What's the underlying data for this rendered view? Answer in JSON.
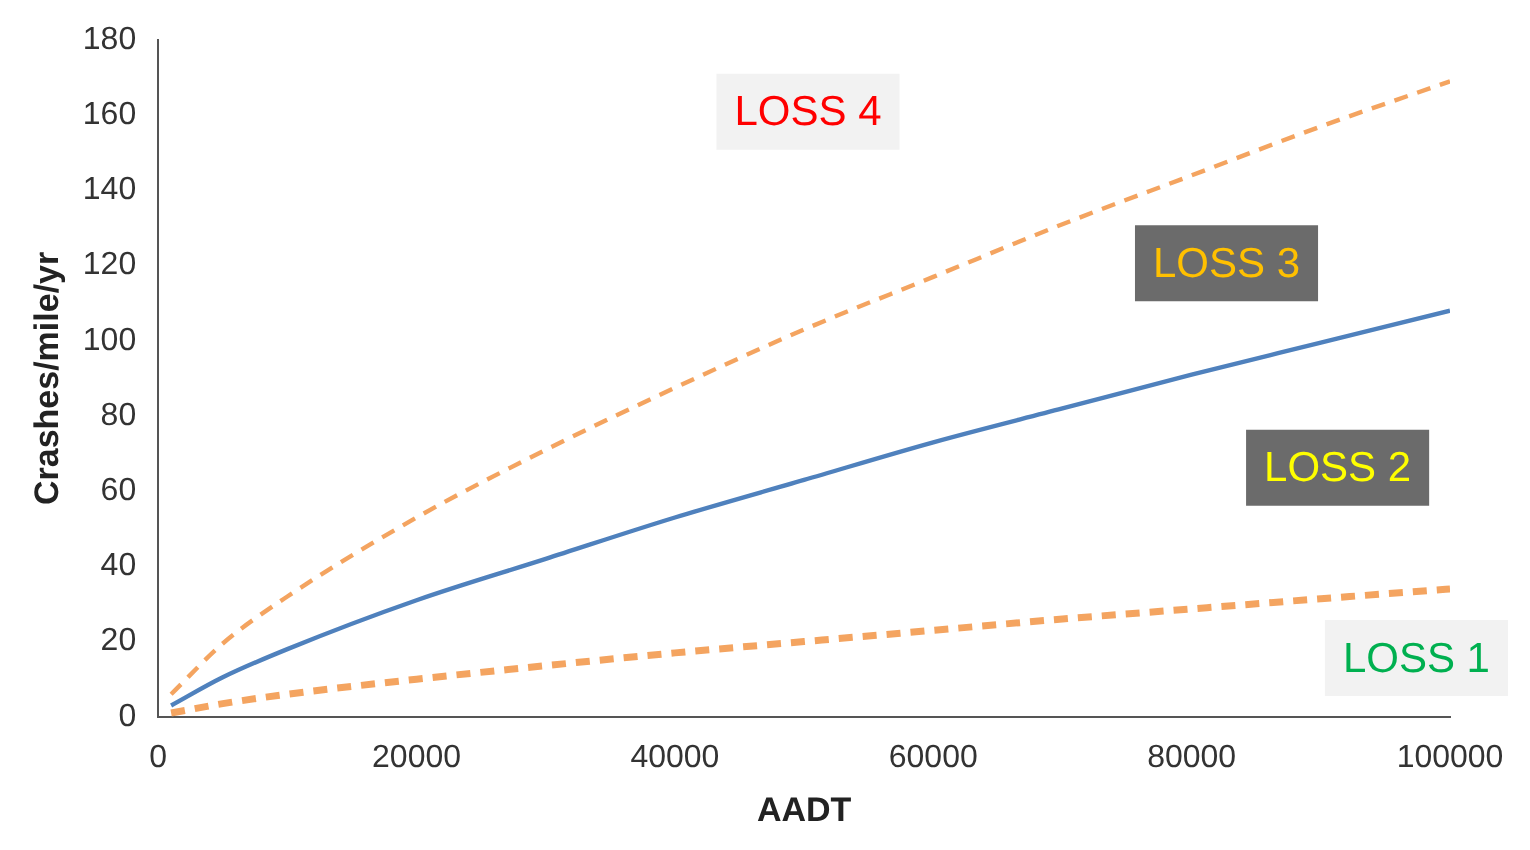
{
  "chart_data": {
    "type": "line",
    "xlabel": "AADT",
    "ylabel": "Crashes/mile/yr",
    "x": [
      1000,
      5000,
      10000,
      20000,
      30000,
      40000,
      50000,
      60000,
      70000,
      80000,
      90000,
      100000
    ],
    "series": [
      {
        "color": "#f4a460",
        "line_style": "dashed",
        "values": [
          6,
          19.5,
          32,
          53,
          71,
          87.5,
          103,
          117,
          131,
          144,
          157,
          169
        ]
      },
      {
        "color": "#4f81bd",
        "line_style": "solid",
        "values": [
          3,
          10.5,
          18,
          31,
          42,
          53,
          63,
          73,
          82,
          91,
          99.5,
          108
        ]
      },
      {
        "color": "#f4a460",
        "line_style": "dashed",
        "values": [
          1,
          3.5,
          6,
          10,
          13.6,
          17,
          20,
          23,
          26,
          28.7,
          31.4,
          34
        ]
      }
    ],
    "xlim": [
      0,
      100000
    ],
    "xticks": [
      0,
      20000,
      40000,
      60000,
      80000,
      100000
    ],
    "ylim": [
      0,
      180
    ],
    "yticks": [
      0,
      20,
      40,
      60,
      80,
      100,
      120,
      140,
      160,
      180
    ],
    "grid": false,
    "legend": false,
    "marker": "none",
    "annotations": [
      "LOSS 4",
      "LOSS 3",
      "LOSS 2",
      "LOSS 1"
    ]
  }
}
